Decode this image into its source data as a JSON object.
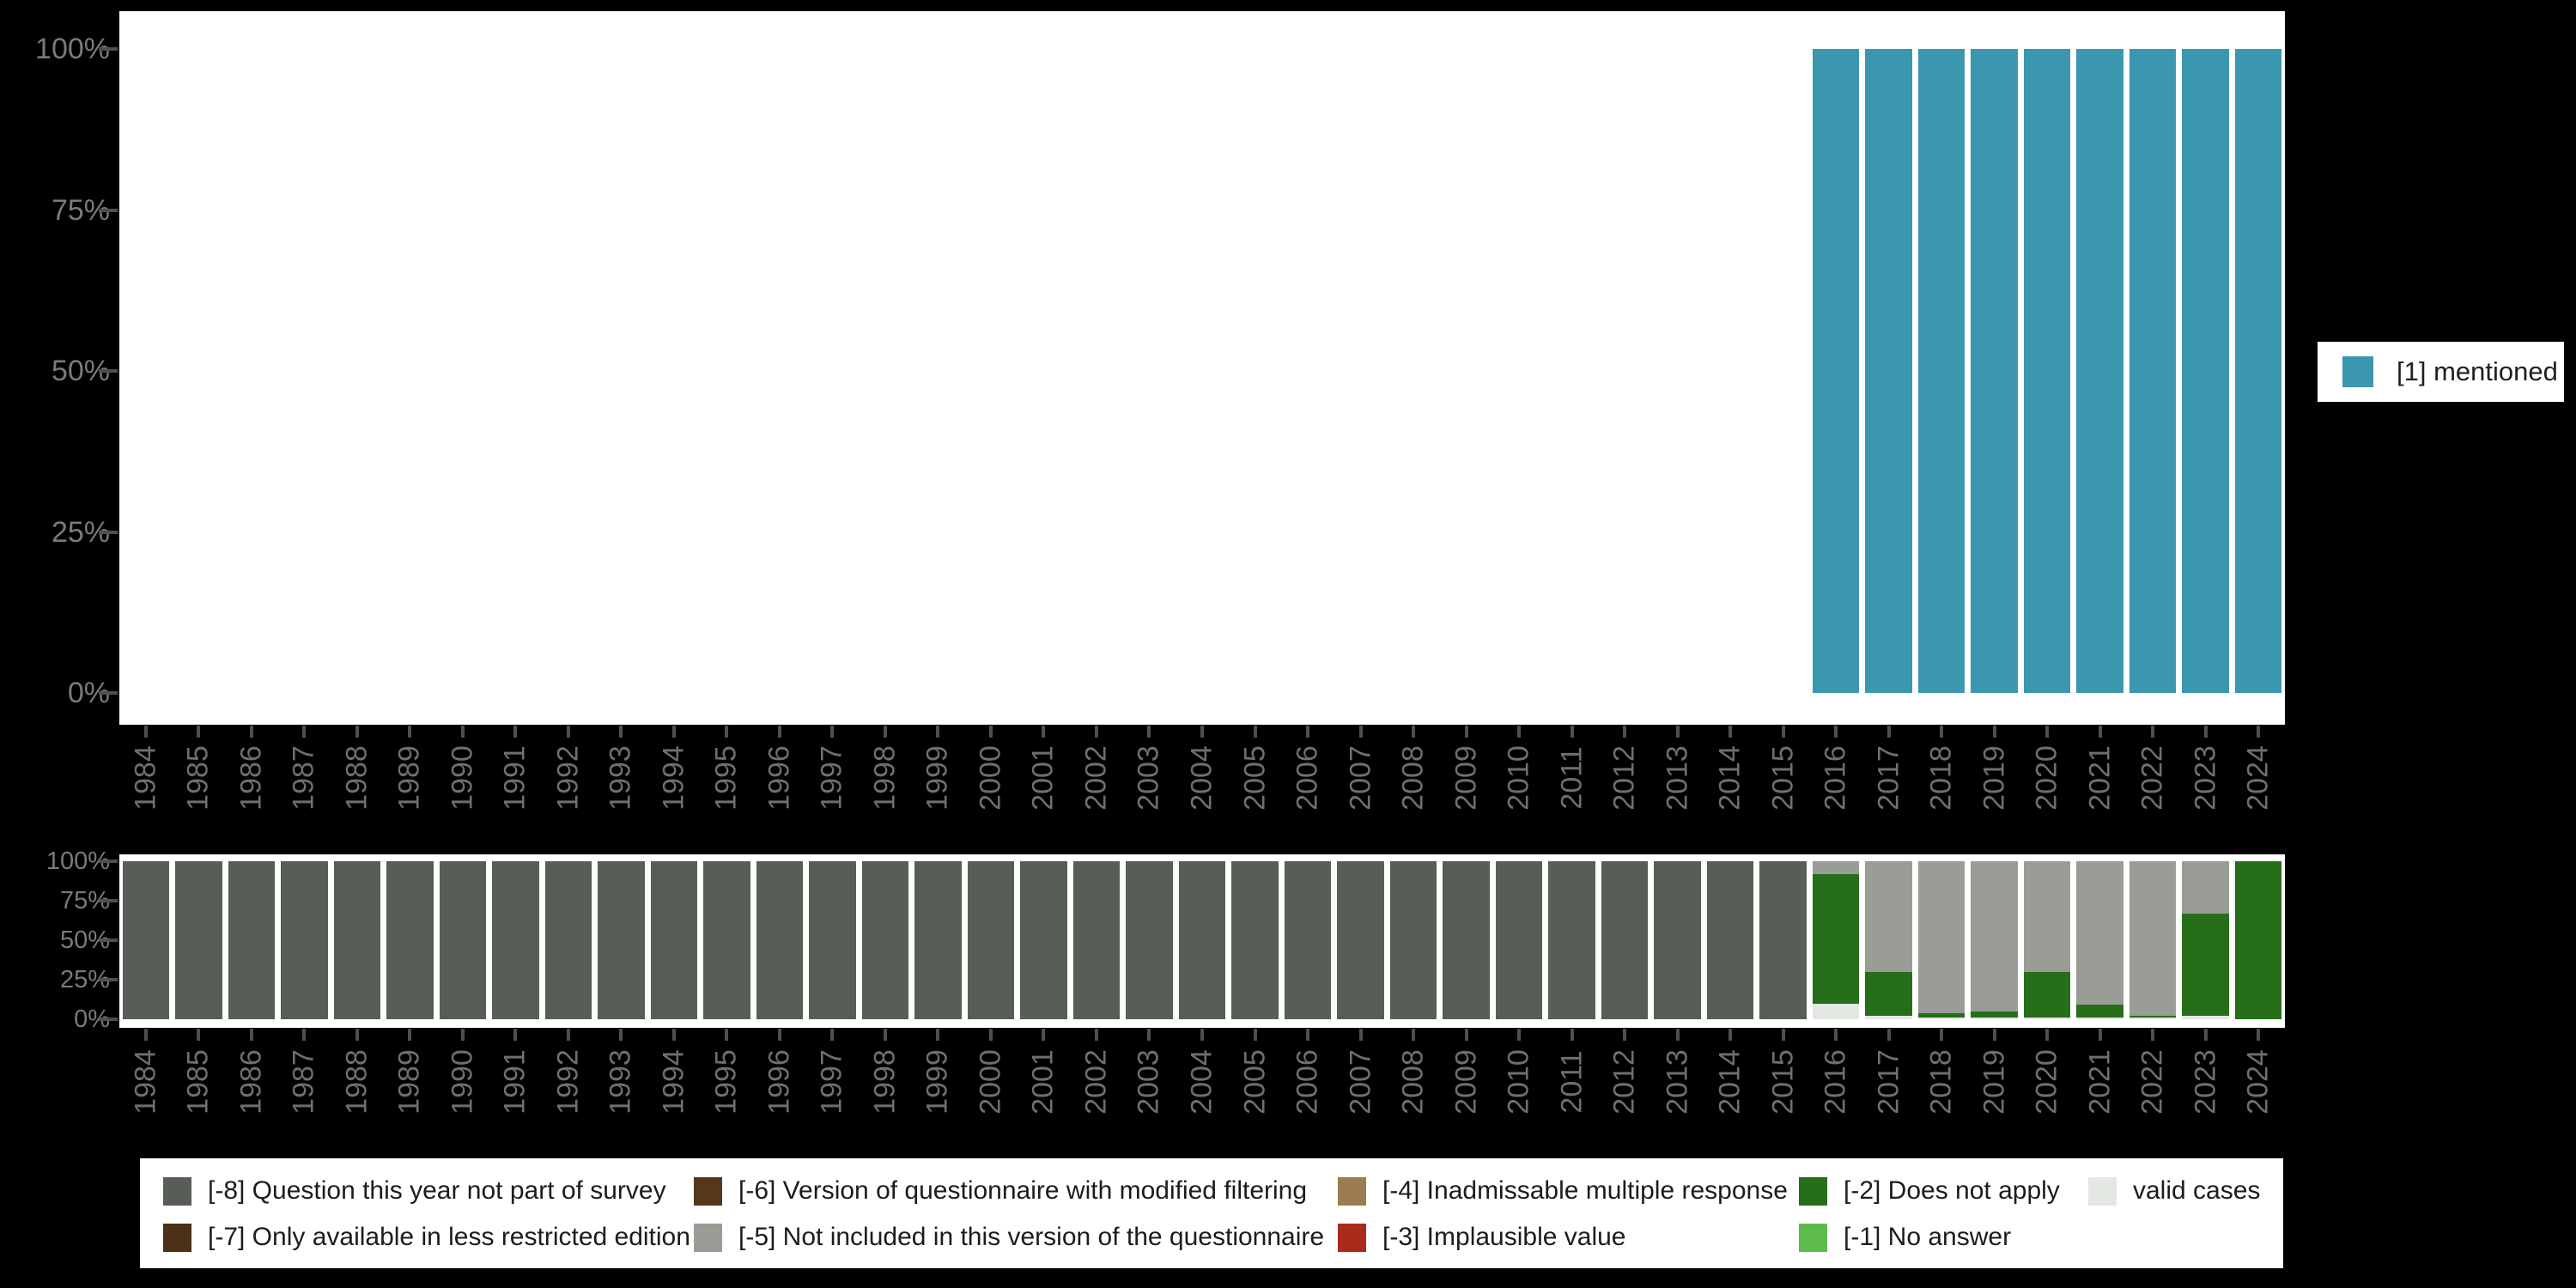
{
  "colors": {
    "background": "#000000",
    "panel": "#ffffff",
    "mentioned": "#3b97af",
    "cat_minus8": "#565e55",
    "cat_minus7": "#4b3118",
    "cat_minus6": "#55371b",
    "cat_minus5": "#999d95",
    "cat_minus4": "#9c7c50",
    "cat_minus3": "#aa2a1c",
    "cat_minus2": "#266e1a",
    "cat_minus1": "#5cbb4a",
    "valid_cases": "#e4e8e2",
    "axis_text": "#7a7a7a",
    "year_text": "#6f6f6f",
    "tick": "#4f4f4f",
    "legend_text": "#1c1c1c"
  },
  "legend_right": {
    "label": "[1] mentioned",
    "color_key": "mentioned"
  },
  "legend_bottom": {
    "items": [
      {
        "label": "[-8] Question this year not part of survey",
        "color_key": "cat_minus8",
        "row": 0,
        "col": 0
      },
      {
        "label": "[-6] Version of questionnaire with modified filtering",
        "color_key": "cat_minus6",
        "row": 0,
        "col": 1
      },
      {
        "label": "[-4] Inadmissable multiple response",
        "color_key": "cat_minus4",
        "row": 0,
        "col": 2
      },
      {
        "label": "[-2] Does not apply",
        "color_key": "cat_minus2",
        "row": 0,
        "col": 3
      },
      {
        "label": "valid cases",
        "color_key": "valid_cases",
        "row": 0,
        "col": 4
      },
      {
        "label": "[-7] Only available in less restricted edition",
        "color_key": "cat_minus7",
        "row": 1,
        "col": 0
      },
      {
        "label": "[-5] Not included in this version of the questionnaire",
        "color_key": "cat_minus5",
        "row": 1,
        "col": 1
      },
      {
        "label": "[-3] Implausible value",
        "color_key": "cat_minus3",
        "row": 1,
        "col": 2
      },
      {
        "label": "[-1] No answer",
        "color_key": "cat_minus1",
        "row": 1,
        "col": 3
      }
    ]
  },
  "chart_data": [
    {
      "id": "mentioned-over-time",
      "type": "bar",
      "title": "",
      "xlabel": "",
      "ylabel": "",
      "ylim": [
        0,
        100
      ],
      "yticks": [
        "0%",
        "25%",
        "50%",
        "75%",
        "100%"
      ],
      "grid": false,
      "legend_position": "right",
      "x": [
        "1984",
        "1985",
        "1986",
        "1987",
        "1988",
        "1989",
        "1990",
        "1991",
        "1992",
        "1993",
        "1994",
        "1995",
        "1996",
        "1997",
        "1998",
        "1999",
        "2000",
        "2001",
        "2002",
        "2003",
        "2004",
        "2005",
        "2006",
        "2007",
        "2008",
        "2009",
        "2010",
        "2011",
        "2012",
        "2013",
        "2014",
        "2015",
        "2016",
        "2017",
        "2018",
        "2019",
        "2020",
        "2021",
        "2022",
        "2023",
        "2024"
      ],
      "series": [
        {
          "name": "[1] mentioned",
          "color_key": "mentioned",
          "values": [
            null,
            null,
            null,
            null,
            null,
            null,
            null,
            null,
            null,
            null,
            null,
            null,
            null,
            null,
            null,
            null,
            null,
            null,
            null,
            null,
            null,
            null,
            null,
            null,
            null,
            null,
            null,
            null,
            null,
            null,
            null,
            null,
            100,
            100,
            100,
            100,
            100,
            100,
            100,
            100,
            100
          ]
        }
      ]
    },
    {
      "id": "missing-values-by-year",
      "type": "stacked-bar",
      "title": "",
      "xlabel": "",
      "ylabel": "",
      "ylim": [
        0,
        100
      ],
      "yticks": [
        "0%",
        "25%",
        "50%",
        "75%",
        "100%"
      ],
      "grid": false,
      "legend_position": "bottom",
      "x": [
        "1984",
        "1985",
        "1986",
        "1987",
        "1988",
        "1989",
        "1990",
        "1991",
        "1992",
        "1993",
        "1994",
        "1995",
        "1996",
        "1997",
        "1998",
        "1999",
        "2000",
        "2001",
        "2002",
        "2003",
        "2004",
        "2005",
        "2006",
        "2007",
        "2008",
        "2009",
        "2010",
        "2011",
        "2012",
        "2013",
        "2014",
        "2015",
        "2016",
        "2017",
        "2018",
        "2019",
        "2020",
        "2021",
        "2022",
        "2023",
        "2024"
      ],
      "series": [
        {
          "name": "[-8] Question this year not part of survey",
          "color_key": "cat_minus8",
          "values": [
            100,
            100,
            100,
            100,
            100,
            100,
            100,
            100,
            100,
            100,
            100,
            100,
            100,
            100,
            100,
            100,
            100,
            100,
            100,
            100,
            100,
            100,
            100,
            100,
            100,
            100,
            100,
            100,
            100,
            100,
            100,
            100,
            0,
            0,
            0,
            0,
            0,
            0,
            0,
            0,
            0
          ]
        },
        {
          "name": "valid cases",
          "color_key": "valid_cases",
          "values": [
            0,
            0,
            0,
            0,
            0,
            0,
            0,
            0,
            0,
            0,
            0,
            0,
            0,
            0,
            0,
            0,
            0,
            0,
            0,
            0,
            0,
            0,
            0,
            0,
            0,
            0,
            0,
            0,
            0,
            0,
            0,
            0,
            10,
            2,
            1,
            1,
            1,
            1,
            1,
            2,
            0
          ]
        },
        {
          "name": "[-2] Does not apply",
          "color_key": "cat_minus2",
          "values": [
            0,
            0,
            0,
            0,
            0,
            0,
            0,
            0,
            0,
            0,
            0,
            0,
            0,
            0,
            0,
            0,
            0,
            0,
            0,
            0,
            0,
            0,
            0,
            0,
            0,
            0,
            0,
            0,
            0,
            0,
            0,
            0,
            82,
            28,
            3,
            4,
            29,
            8,
            1,
            65,
            100
          ]
        },
        {
          "name": "[-5] Not included in this version of the questionnaire",
          "color_key": "cat_minus5",
          "values": [
            0,
            0,
            0,
            0,
            0,
            0,
            0,
            0,
            0,
            0,
            0,
            0,
            0,
            0,
            0,
            0,
            0,
            0,
            0,
            0,
            0,
            0,
            0,
            0,
            0,
            0,
            0,
            0,
            0,
            0,
            0,
            0,
            8,
            70,
            96,
            95,
            70,
            91,
            98,
            33,
            0
          ]
        }
      ]
    }
  ]
}
